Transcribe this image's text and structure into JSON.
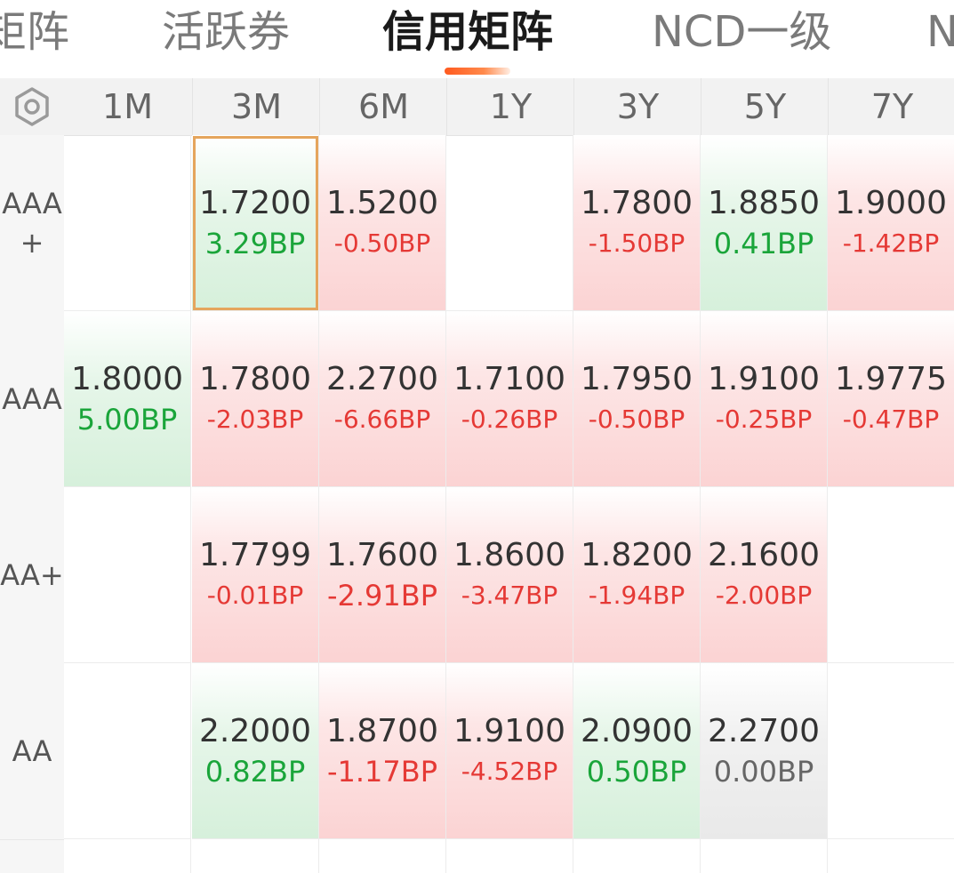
{
  "tabs": {
    "items": [
      "矩阵",
      "活跃券",
      "信用矩阵",
      "NCD一级",
      "N"
    ],
    "active": "信用矩阵"
  },
  "header": {
    "settings_icon": "hexagon-settings-icon",
    "columns": [
      "1M",
      "3M",
      "6M",
      "1Y",
      "3Y",
      "5Y",
      "7Y"
    ]
  },
  "rows": [
    {
      "label": "AAA\n+",
      "cells": [
        null,
        {
          "value": "1.7200",
          "bp": "3.29BP",
          "trend": "up",
          "selected": true
        },
        {
          "value": "1.5200",
          "bp": "-0.50BP",
          "trend": "down"
        },
        null,
        {
          "value": "1.7800",
          "bp": "-1.50BP",
          "trend": "down"
        },
        {
          "value": "1.8850",
          "bp": "0.41BP",
          "trend": "up"
        },
        {
          "value": "1.9000",
          "bp": "-1.42BP",
          "trend": "down"
        }
      ]
    },
    {
      "label": "AAA",
      "cells": [
        {
          "value": "1.8000",
          "bp": "5.00BP",
          "trend": "up"
        },
        {
          "value": "1.7800",
          "bp": "-2.03BP",
          "trend": "down"
        },
        {
          "value": "2.2700",
          "bp": "-6.66BP",
          "trend": "down"
        },
        {
          "value": "1.7100",
          "bp": "-0.26BP",
          "trend": "down"
        },
        {
          "value": "1.7950",
          "bp": "-0.50BP",
          "trend": "down"
        },
        {
          "value": "1.9100",
          "bp": "-0.25BP",
          "trend": "down"
        },
        {
          "value": "1.9775",
          "bp": "-0.47BP",
          "trend": "down"
        }
      ]
    },
    {
      "label": "AA+",
      "cells": [
        null,
        {
          "value": "1.7799",
          "bp": "-0.01BP",
          "trend": "down"
        },
        {
          "value": "1.7600",
          "bp": "-2.91BP",
          "trend": "down"
        },
        {
          "value": "1.8600",
          "bp": "-3.47BP",
          "trend": "down"
        },
        {
          "value": "1.8200",
          "bp": "-1.94BP",
          "trend": "down"
        },
        {
          "value": "2.1600",
          "bp": "-2.00BP",
          "trend": "down"
        },
        null
      ]
    },
    {
      "label": "AA",
      "cells": [
        null,
        {
          "value": "2.2000",
          "bp": "0.82BP",
          "trend": "up"
        },
        {
          "value": "1.8700",
          "bp": "-1.17BP",
          "trend": "down"
        },
        {
          "value": "1.9100",
          "bp": "-4.52BP",
          "trend": "down"
        },
        {
          "value": "2.0900",
          "bp": "0.50BP",
          "trend": "up"
        },
        {
          "value": "2.2700",
          "bp": "0.00BP",
          "trend": "flat"
        },
        null
      ]
    }
  ],
  "colors": {
    "up": "#1aa53a",
    "down": "#e53935",
    "flat": "#666666",
    "accent": "#ff5a1f",
    "selected_border": "#e5a55d"
  }
}
